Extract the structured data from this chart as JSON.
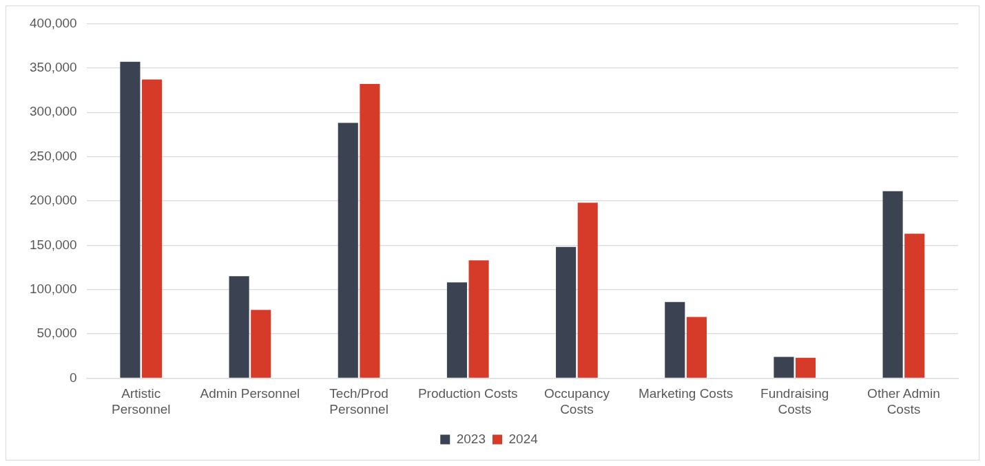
{
  "chart_data": {
    "type": "bar",
    "categories": [
      "Artistic Personnel",
      "Admin Personnel",
      "Tech/Prod Personnel",
      "Production Costs",
      "Occupancy Costs",
      "Marketing Costs",
      "Fundraising Costs",
      "Other Admin Costs"
    ],
    "series": [
      {
        "name": "2023",
        "color": "#3b4353",
        "values": [
          357000,
          115000,
          288000,
          108000,
          148000,
          86000,
          24000,
          211000
        ]
      },
      {
        "name": "2024",
        "color": "#d63b2a",
        "values": [
          337000,
          77000,
          332000,
          133000,
          198000,
          69000,
          23000,
          163000
        ]
      }
    ],
    "ylim": [
      0,
      400000
    ],
    "yticks": [
      {
        "value": 0,
        "label": "0"
      },
      {
        "value": 50000,
        "label": "50,000"
      },
      {
        "value": 100000,
        "label": "100,000"
      },
      {
        "value": 150000,
        "label": "150,000"
      },
      {
        "value": 200000,
        "label": "200,000"
      },
      {
        "value": 250000,
        "label": "250,000"
      },
      {
        "value": 300000,
        "label": "300,000"
      },
      {
        "value": 350000,
        "label": "350,000"
      },
      {
        "value": 400000,
        "label": "400,000"
      }
    ],
    "grid": "y",
    "legend": "bottom"
  }
}
